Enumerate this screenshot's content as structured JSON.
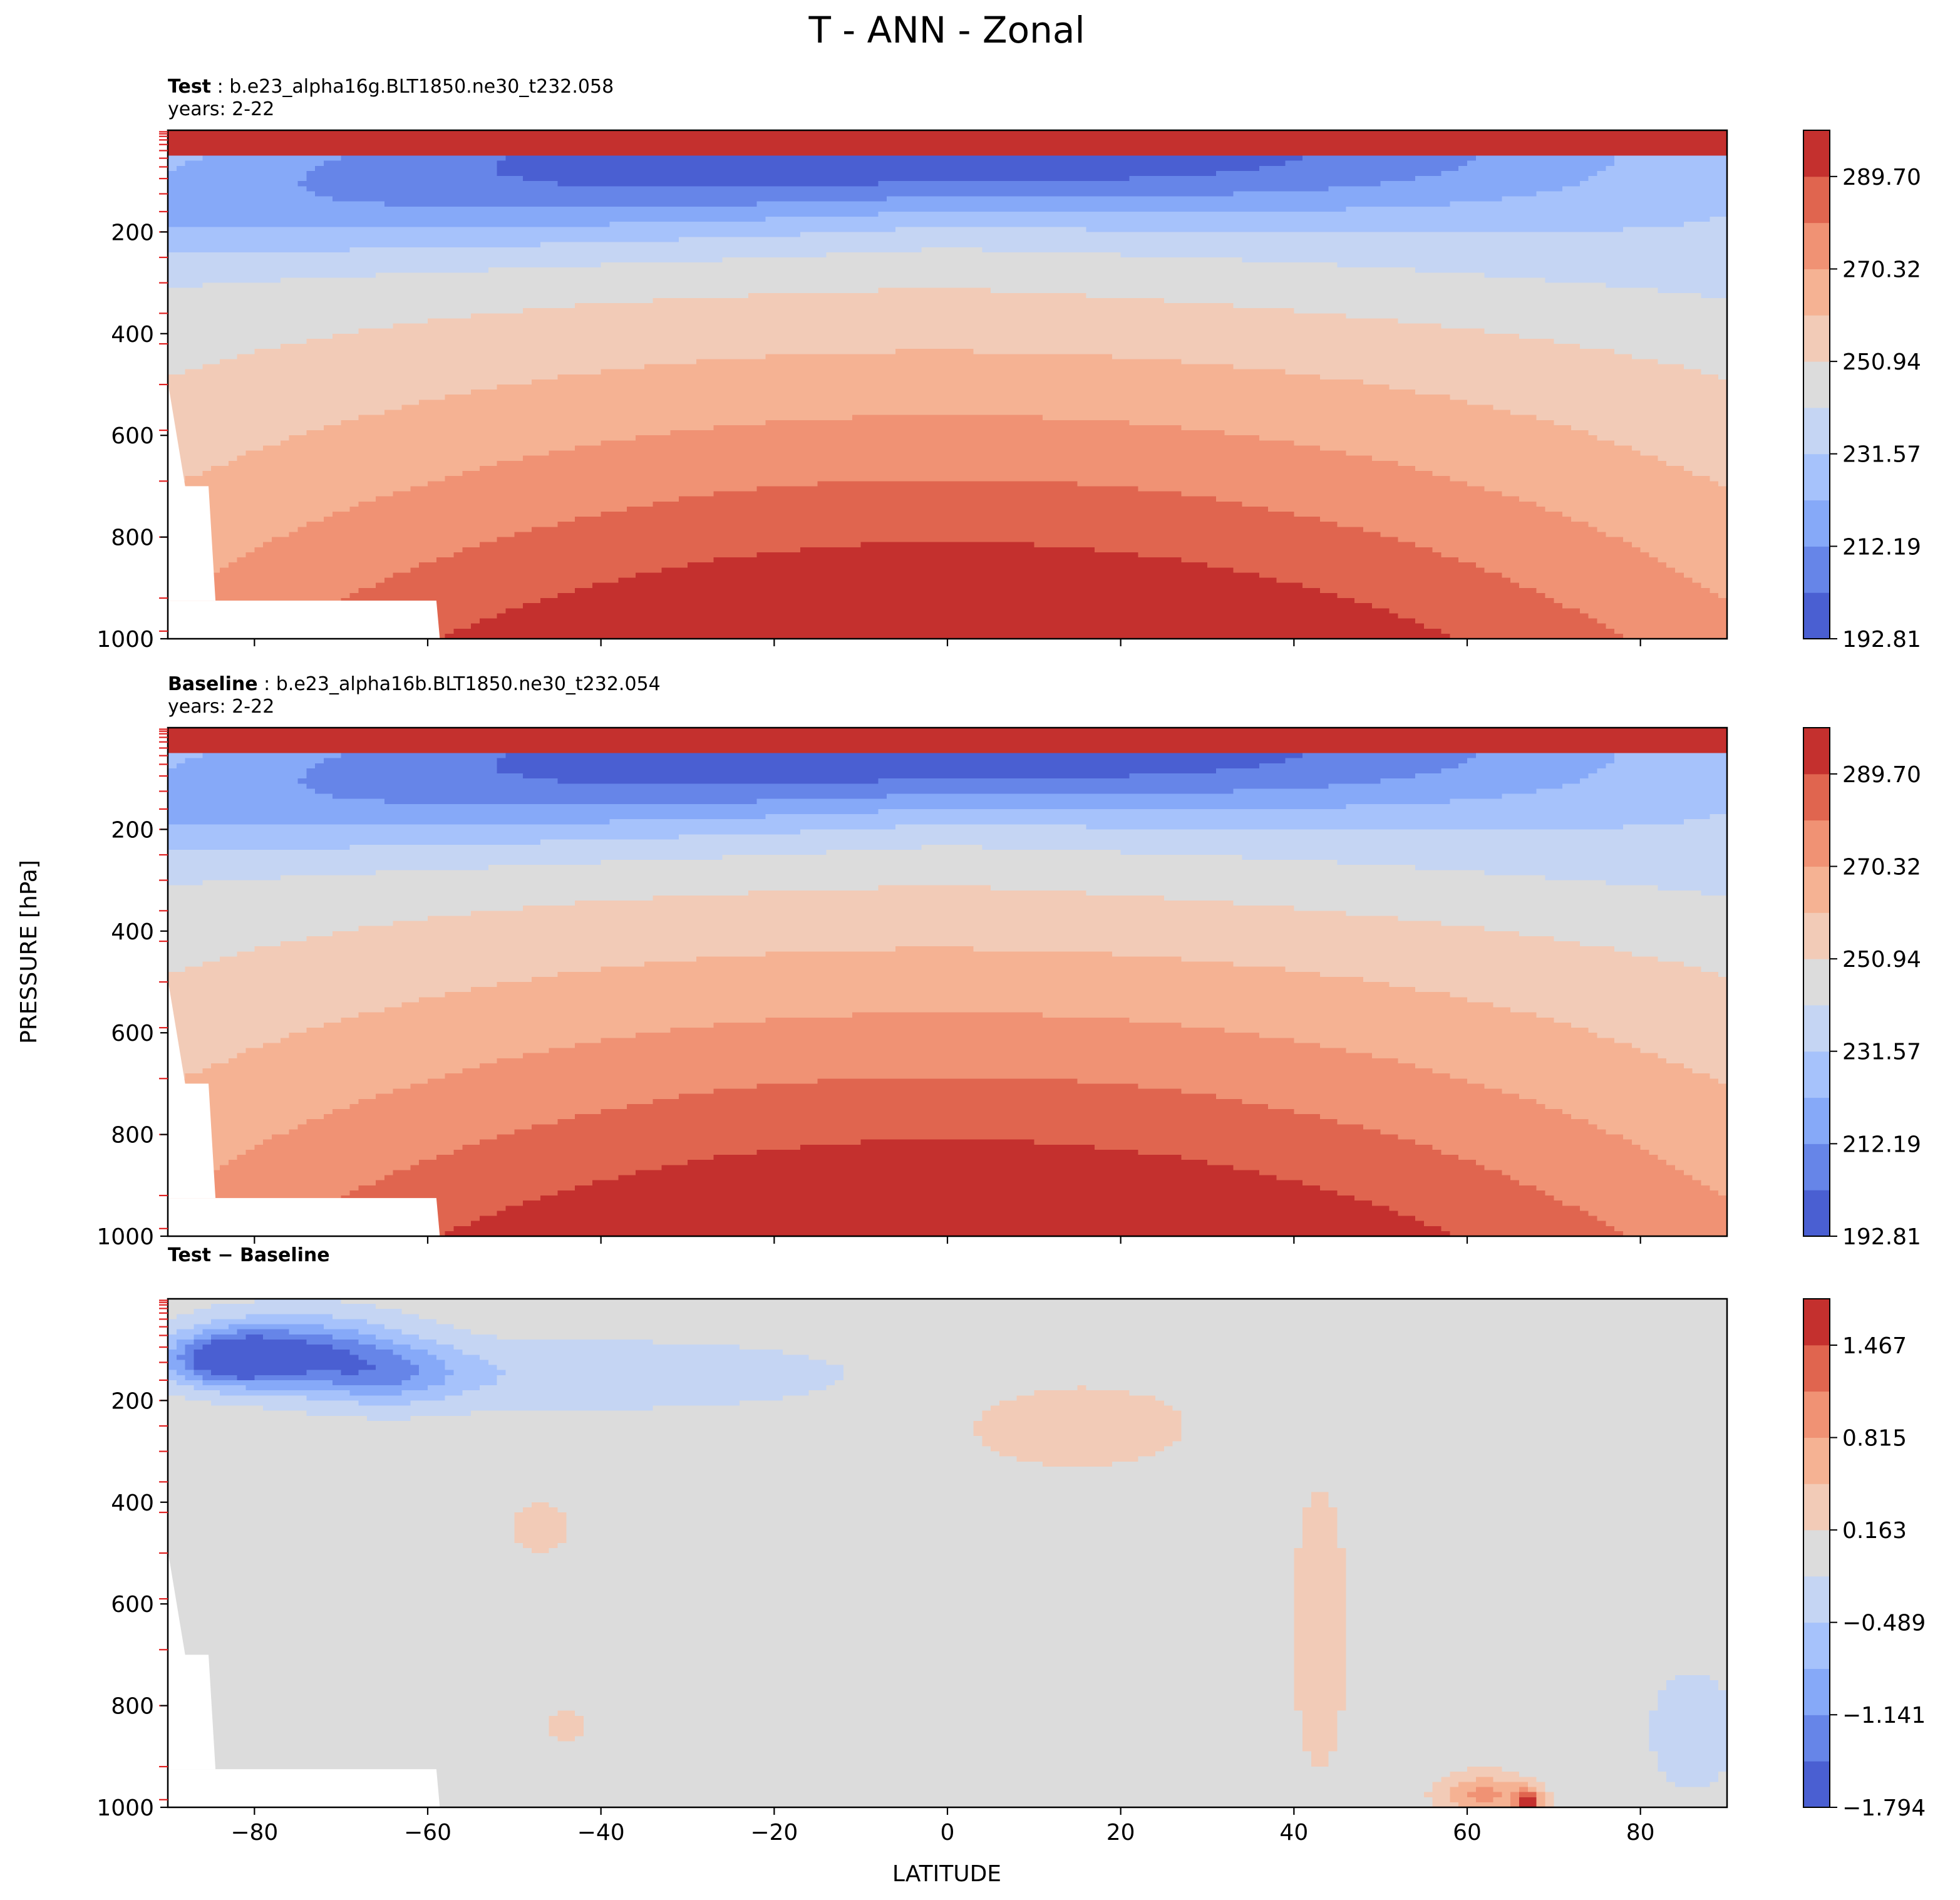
{
  "figure": {
    "title": "T - ANN - Zonal",
    "ylabel": "PRESSURE [hPa]",
    "xlabel": "LATITUDE"
  },
  "chart_data": [
    {
      "type": "contourf",
      "panel": "test",
      "label_bold": "Test",
      "label_rest": " : b.e23_alpha16g.BLT1850.ne30_t232.058",
      "years": "years: 2-22",
      "x": [
        -90,
        -80,
        -70,
        -60,
        -50,
        -40,
        -30,
        -20,
        -10,
        0,
        10,
        20,
        30,
        40,
        50,
        60,
        70,
        80,
        90
      ],
      "xlim": [
        -90,
        90
      ],
      "xticks": [
        -80,
        -60,
        -40,
        -20,
        0,
        20,
        40,
        60,
        80
      ],
      "xtick_labels": [
        "−80",
        "−60",
        "−40",
        "−20",
        "0",
        "20",
        "40",
        "60",
        "80"
      ],
      "yticks": [
        200,
        400,
        600,
        800,
        1000
      ],
      "ytick_labels": [
        "200",
        "400",
        "600",
        "800",
        "1000"
      ],
      "ylim": [
        1000,
        0
      ],
      "masked_surface": {
        "lat_max": -59,
        "p_min": 925
      },
      "levels": [
        192.81,
        202.5,
        212.19,
        221.88,
        231.57,
        241.25,
        250.94,
        260.63,
        270.32,
        280.01,
        289.7,
        299.39
      ],
      "colorbar_ticks": [
        "289.70",
        "270.32",
        "250.94",
        "231.57",
        "212.19",
        "192.81"
      ],
      "colors": [
        "#4a5fd2",
        "#6685e8",
        "#86a9f8",
        "#a6c2fb",
        "#c5d5f3",
        "#dcdcdc",
        "#f2cbb7",
        "#f5b293",
        "#f09274",
        "#e0654f",
        "#c4302e"
      ],
      "contours": {
        "centers": [
          235.0,
          268.0,
          235.0
        ],
        "spans": [
          56,
          55,
          56
        ],
        "ptop": [
          100,
          55,
          100
        ]
      }
    },
    {
      "type": "contourf",
      "panel": "baseline",
      "label_bold": "Baseline",
      "label_rest": " : b.e23_alpha16b.BLT1850.ne30_t232.054",
      "years": "years: 2-22",
      "x": [
        -90,
        -80,
        -70,
        -60,
        -50,
        -40,
        -30,
        -20,
        -10,
        0,
        10,
        20,
        30,
        40,
        50,
        60,
        70,
        80,
        90
      ],
      "xlim": [
        -90,
        90
      ],
      "xticks": [
        -80,
        -60,
        -40,
        -20,
        0,
        20,
        40,
        60,
        80
      ],
      "xtick_labels": [
        "−80",
        "−60",
        "−40",
        "−20",
        "0",
        "20",
        "40",
        "60",
        "80"
      ],
      "yticks": [
        200,
        400,
        600,
        800,
        1000
      ],
      "ytick_labels": [
        "200",
        "400",
        "600",
        "800",
        "1000"
      ],
      "ylim": [
        1000,
        0
      ],
      "masked_surface": {
        "lat_max": -59,
        "p_min": 925
      },
      "levels": [
        192.81,
        202.5,
        212.19,
        221.88,
        231.57,
        241.25,
        250.94,
        260.63,
        270.32,
        280.01,
        289.7,
        299.39
      ],
      "colorbar_ticks": [
        "289.70",
        "270.32",
        "250.94",
        "231.57",
        "212.19",
        "192.81"
      ],
      "colors": [
        "#4a5fd2",
        "#6685e8",
        "#86a9f8",
        "#a6c2fb",
        "#c5d5f3",
        "#dcdcdc",
        "#f2cbb7",
        "#f5b293",
        "#f09274",
        "#e0654f",
        "#c4302e"
      ],
      "contours": {
        "centers": [
          235.0,
          268.0,
          235.0
        ],
        "spans": [
          56,
          55,
          56
        ],
        "ptop": [
          100,
          55,
          100
        ]
      }
    },
    {
      "type": "contourf",
      "panel": "difference",
      "label_bold": "Test − Baseline",
      "x": [
        -90,
        -80,
        -70,
        -60,
        -50,
        -40,
        -30,
        -20,
        -10,
        0,
        10,
        20,
        30,
        40,
        50,
        60,
        70,
        80,
        90
      ],
      "xlim": [
        -90,
        90
      ],
      "xticks": [
        -80,
        -60,
        -40,
        -20,
        0,
        20,
        40,
        60,
        80
      ],
      "xtick_labels": [
        "−80",
        "−60",
        "−40",
        "−20",
        "0",
        "20",
        "40",
        "60",
        "80"
      ],
      "yticks": [
        200,
        400,
        600,
        800,
        1000
      ],
      "ytick_labels": [
        "200",
        "400",
        "600",
        "800",
        "1000"
      ],
      "ylim": [
        1000,
        0
      ],
      "masked_surface": {
        "lat_max": -59,
        "p_min": 925
      },
      "levels": [
        -1.794,
        -1.468,
        -1.141,
        -0.815,
        -0.489,
        -0.163,
        0.163,
        0.489,
        0.815,
        1.141,
        1.467,
        1.794
      ],
      "colorbar_ticks": [
        "1.467",
        "0.815",
        "0.163",
        "−0.489",
        "−1.141",
        "−1.794"
      ],
      "colors": [
        "#4a5fd2",
        "#6685e8",
        "#86a9f8",
        "#a6c2fb",
        "#c5d5f3",
        "#dcdcdc",
        "#f2cbb7",
        "#f5b293",
        "#f09274",
        "#e0654f",
        "#c4302e"
      ],
      "anomalies": [
        {
          "lat": -83,
          "p": 120,
          "value": -1.5,
          "slat": 7,
          "sp": 50
        },
        {
          "lat": -75,
          "p": 100,
          "value": -1.2,
          "slat": 12,
          "sp": 70
        },
        {
          "lat": -65,
          "p": 150,
          "value": -0.8,
          "slat": 10,
          "sp": 60
        },
        {
          "lat": -40,
          "p": 150,
          "value": -0.4,
          "slat": 30,
          "sp": 70
        },
        {
          "lat": 15,
          "p": 250,
          "value": 0.35,
          "slat": 14,
          "sp": 90
        },
        {
          "lat": 43,
          "p": 650,
          "value": 0.3,
          "slat": 4,
          "sp": 350
        },
        {
          "lat": -47,
          "p": 450,
          "value": 0.3,
          "slat": 4,
          "sp": 60
        },
        {
          "lat": -44,
          "p": 840,
          "value": 0.25,
          "slat": 3,
          "sp": 40
        },
        {
          "lat": 62,
          "p": 975,
          "value": 0.9,
          "slat": 5,
          "sp": 40
        },
        {
          "lat": 67,
          "p": 990,
          "value": 1.6,
          "slat": 1.5,
          "sp": 25
        },
        {
          "lat": 86,
          "p": 850,
          "value": -0.4,
          "slat": 5,
          "sp": 120
        }
      ]
    }
  ]
}
